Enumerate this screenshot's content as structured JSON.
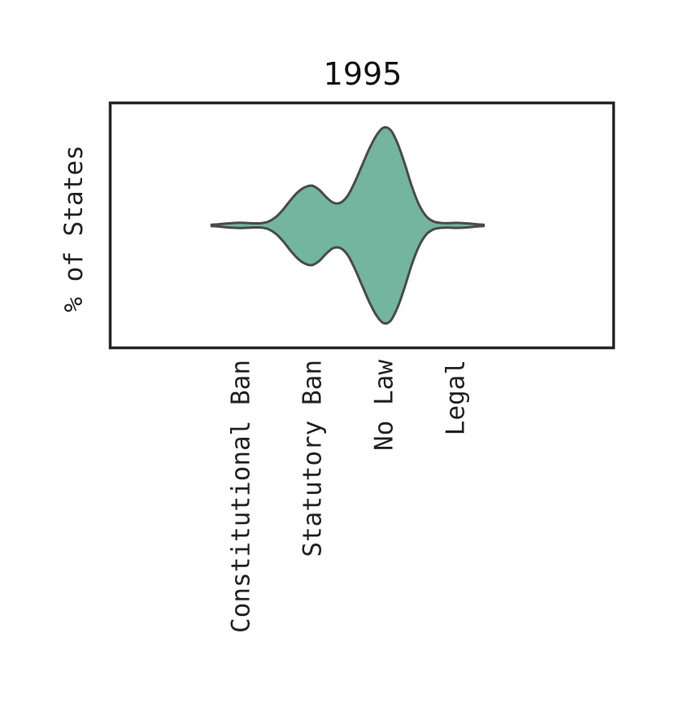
{
  "chart_data": {
    "type": "violin",
    "title": "1995",
    "xlabel": "",
    "ylabel": "% of States",
    "categories": [
      "Constitutional Ban",
      "Statutory Ban",
      "No Law",
      "Legal"
    ],
    "category_positions": [
      0,
      1,
      2,
      3
    ],
    "xlim": [
      -1.8,
      5.2
    ],
    "orientation": "horizontal-spread",
    "density": {
      "x": [
        -0.4,
        -0.3,
        -0.2,
        -0.1,
        0.0,
        0.1,
        0.2,
        0.3,
        0.4,
        0.5,
        0.6,
        0.7,
        0.8,
        0.9,
        1.0,
        1.1,
        1.2,
        1.3,
        1.4,
        1.5,
        1.6,
        1.7,
        1.8,
        1.9,
        2.0,
        2.1,
        2.2,
        2.3,
        2.4,
        2.5,
        2.6,
        2.7,
        2.8,
        2.9,
        3.0,
        3.1,
        3.2,
        3.3,
        3.4
      ],
      "values": [
        0.012,
        0.02,
        0.032,
        0.042,
        0.046,
        0.042,
        0.036,
        0.04,
        0.07,
        0.15,
        0.28,
        0.44,
        0.58,
        0.67,
        0.7,
        0.63,
        0.5,
        0.4,
        0.4,
        0.52,
        0.76,
        1.05,
        1.34,
        1.58,
        1.72,
        1.68,
        1.44,
        1.08,
        0.68,
        0.36,
        0.16,
        0.07,
        0.044,
        0.04,
        0.044,
        0.042,
        0.032,
        0.02,
        0.012
      ]
    },
    "grid": false,
    "legend": "none",
    "fill_color": "#73b59f",
    "edge_color": "#4a4a4a",
    "frame_color": "#262626"
  }
}
